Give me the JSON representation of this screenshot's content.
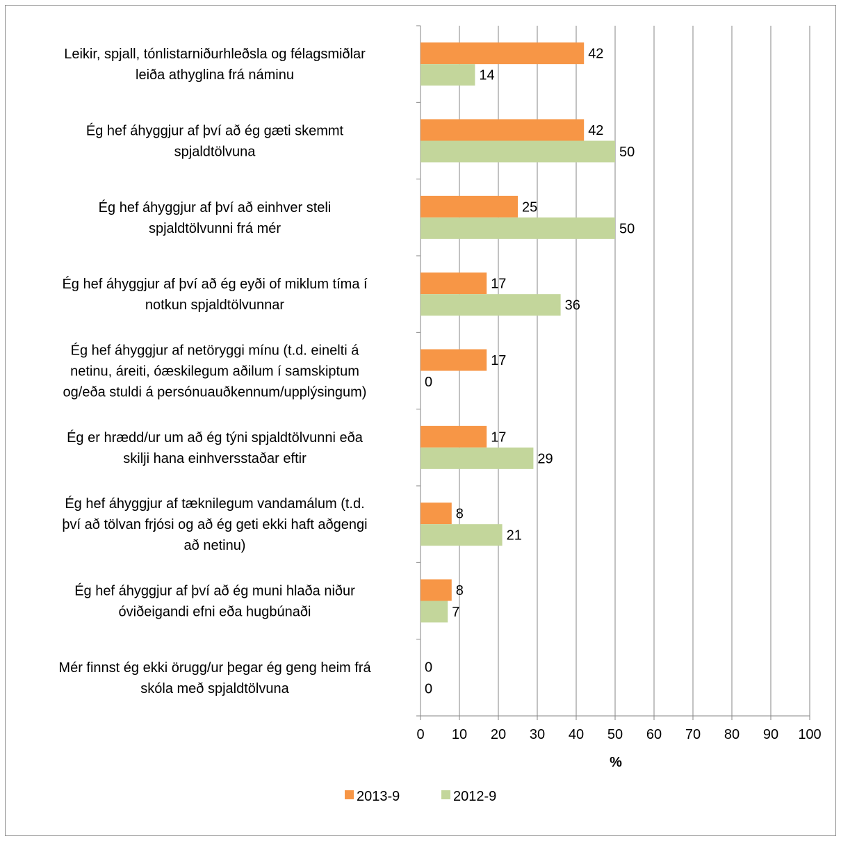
{
  "chart_data": {
    "type": "bar",
    "orientation": "horizontal",
    "title": "",
    "xlabel": "%",
    "ylabel": "",
    "xlim": [
      0,
      100
    ],
    "x_ticks": [
      "0",
      "10",
      "20",
      "30",
      "40",
      "50",
      "60",
      "70",
      "80",
      "90",
      "100"
    ],
    "grid": "vertical",
    "legend_position": "bottom",
    "categories": [
      [
        "Leikir, spjall, tónlistarniðurhleðsla og félagsmiðlar",
        "leiða athyglina frá náminu"
      ],
      [
        "Ég hef áhyggjur af því að ég gæti skemmt",
        "spjaldtölvuna"
      ],
      [
        "Ég hef áhyggjur af því að einhver steli",
        "spjaldtölvunni frá mér"
      ],
      [
        "Ég hef áhyggjur af því að ég eyði of miklum tíma í",
        "notkun spjaldtölvunnar"
      ],
      [
        "Ég hef áhyggjur af netöryggi mínu (t.d. einelti á",
        "netinu, áreiti, óæskilegum aðilum í samskiptum",
        "og/eða stuldi á persónuauðkennum/upplýsingum)"
      ],
      [
        "Ég er hrædd/ur um að ég týni spjaldtölvunni eða",
        "skilji hana einhversstaðar eftir"
      ],
      [
        "Ég hef áhyggjur af tæknilegum vandamálum (t.d.",
        "því að tölvan frjósi og að ég geti ekki haft aðgengi",
        "að netinu)"
      ],
      [
        "Ég hef áhyggjur af því að ég muni hlaða niður",
        "óviðeigandi efni eða hugbúnaði"
      ],
      [
        "Mér finnst ég ekki örugg/ur þegar ég geng heim frá",
        "skóla með spjaldtölvuna"
      ]
    ],
    "series": [
      {
        "name": "2013-9",
        "color": "#f79646",
        "values": [
          42,
          42,
          25,
          17,
          17,
          17,
          8,
          8,
          0
        ]
      },
      {
        "name": "2012-9",
        "color": "#c3d69b",
        "values": [
          14,
          50,
          50,
          36,
          0,
          29,
          21,
          7,
          0
        ]
      }
    ]
  }
}
